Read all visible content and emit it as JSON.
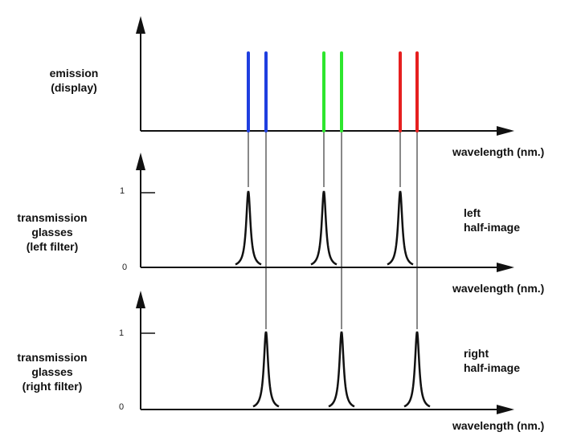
{
  "panels": [
    {
      "id": "emission",
      "label_lines": [
        "emission",
        "(display)"
      ],
      "xlabel": "wavelength (nm.)"
    },
    {
      "id": "left",
      "label_lines": [
        "transmission",
        "glasses",
        "(left filter)"
      ],
      "tick_high": "1",
      "tick_low": "0",
      "half_image_lines": [
        "left",
        "half-image"
      ],
      "xlabel": "wavelength (nm.)"
    },
    {
      "id": "right",
      "label_lines": [
        "transmission",
        "glasses",
        "(right filter)"
      ],
      "tick_high": "1",
      "tick_low": "0",
      "half_image_lines": [
        "right",
        "half-image"
      ],
      "xlabel": "wavelength (nm.)"
    }
  ],
  "colors": {
    "blue": "#1f3fe0",
    "green": "#2ee62e",
    "red": "#e61f1f",
    "axis": "#111111"
  },
  "emission_lines": [
    {
      "color": "blue",
      "eye": "left"
    },
    {
      "color": "blue",
      "eye": "right"
    },
    {
      "color": "green",
      "eye": "left"
    },
    {
      "color": "green",
      "eye": "right"
    },
    {
      "color": "red",
      "eye": "left"
    },
    {
      "color": "red",
      "eye": "right"
    }
  ]
}
